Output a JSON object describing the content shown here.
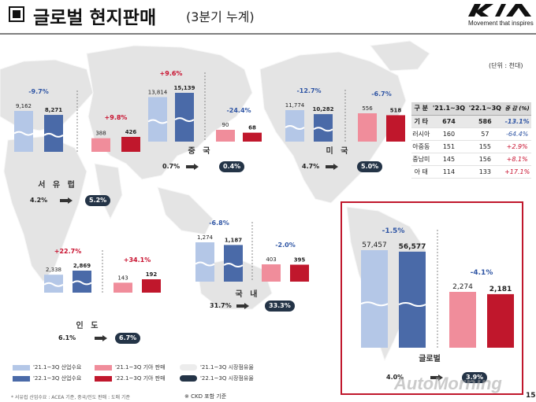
{
  "header": {
    "title": "글로벌 현지판매",
    "subtitle": "(3분기 누계)",
    "brand_tagline": "Movement that inspires"
  },
  "unit_note": "(단위 : 천대)",
  "colors": {
    "industry_2021": "#b4c7e7",
    "industry_2022": "#4a6aa8",
    "kia_2021": "#f08d9b",
    "kia_2022": "#c0172c",
    "growth_pos": "#c8102e",
    "growth_neg": "#2f55a4",
    "map": "#e4e4e4",
    "share_pill": "#243447"
  },
  "chart_data": [
    {
      "type": "bar",
      "region": "서 유 럽",
      "series": [
        {
          "name": "'21.1~3Q 산업수요",
          "value": 9162,
          "label": "9,162"
        },
        {
          "name": "'22.1~3Q 산업수요",
          "value": 8271,
          "label": "8,271"
        },
        {
          "name": "'21.1~3Q 기아 판매",
          "value": 388,
          "label": "388"
        },
        {
          "name": "'22.1~3Q 기아 판매",
          "value": 426,
          "label": "426"
        }
      ],
      "industry_growth": "-9.7%",
      "kia_growth": "+9.8%",
      "share_2021": "4.2%",
      "share_2022": "5.2%"
    },
    {
      "type": "bar",
      "region": "중 국",
      "series": [
        {
          "name": "'21.1~3Q 산업수요",
          "value": 13814,
          "label": "13,814"
        },
        {
          "name": "'22.1~3Q 산업수요",
          "value": 15139,
          "label": "15,139"
        },
        {
          "name": "'21.1~3Q 기아 판매",
          "value": 90,
          "label": "90"
        },
        {
          "name": "'22.1~3Q 기아 판매",
          "value": 68,
          "label": "68"
        }
      ],
      "industry_growth": "+9.6%",
      "kia_growth": "-24.4%",
      "share_2021": "0.7%",
      "share_2022": "0.4%"
    },
    {
      "type": "bar",
      "region": "미 국",
      "series": [
        {
          "name": "'21.1~3Q 산업수요",
          "value": 11774,
          "label": "11,774"
        },
        {
          "name": "'22.1~3Q 산업수요",
          "value": 10282,
          "label": "10,282"
        },
        {
          "name": "'21.1~3Q 기아 판매",
          "value": 556,
          "label": "556"
        },
        {
          "name": "'22.1~3Q 기아 판매",
          "value": 518,
          "label": "518"
        }
      ],
      "industry_growth": "-12.7%",
      "kia_growth": "-6.7%",
      "share_2021": "4.7%",
      "share_2022": "5.0%"
    },
    {
      "type": "bar",
      "region": "인 도",
      "series": [
        {
          "name": "'21.1~3Q 산업수요",
          "value": 2338,
          "label": "2,338"
        },
        {
          "name": "'22.1~3Q 산업수요",
          "value": 2869,
          "label": "2,869"
        },
        {
          "name": "'21.1~3Q 기아 판매",
          "value": 143,
          "label": "143"
        },
        {
          "name": "'22.1~3Q 기아 판매",
          "value": 192,
          "label": "192"
        }
      ],
      "industry_growth": "+22.7%",
      "kia_growth": "+34.1%",
      "share_2021": "6.1%",
      "share_2022": "6.7%"
    },
    {
      "type": "bar",
      "region": "국 내",
      "series": [
        {
          "name": "'21.1~3Q 산업수요",
          "value": 1274,
          "label": "1,274"
        },
        {
          "name": "'22.1~3Q 산업수요",
          "value": 1187,
          "label": "1,187"
        },
        {
          "name": "'21.1~3Q 기아 판매",
          "value": 403,
          "label": "403"
        },
        {
          "name": "'22.1~3Q 기아 판매",
          "value": 395,
          "label": "395"
        }
      ],
      "industry_growth": "-6.8%",
      "kia_growth": "-2.0%",
      "share_2021": "31.7%",
      "share_2022": "33.3%"
    },
    {
      "type": "bar",
      "region": "글로벌",
      "series": [
        {
          "name": "'21.1~3Q 산업수요",
          "value": 57457,
          "label": "57,457"
        },
        {
          "name": "'22.1~3Q 산업수요",
          "value": 56577,
          "label": "56,577"
        },
        {
          "name": "'21.1~3Q 기아 판매",
          "value": 2274,
          "label": "2,274"
        },
        {
          "name": "'22.1~3Q 기아 판매",
          "value": 2181,
          "label": "2,181"
        }
      ],
      "industry_growth": "-1.5%",
      "kia_growth": "-4.1%",
      "share_2021": "4.0%",
      "share_2022": "3.9%"
    }
  ],
  "table": {
    "headers": [
      "구 분",
      "'21.1~3Q",
      "'22.1~3Q",
      "증 감 (%)"
    ],
    "rows": [
      [
        "기 타",
        "674",
        "586",
        "-13.1%"
      ],
      [
        "러시아",
        "160",
        "57",
        "-64.4%"
      ],
      [
        "아중동",
        "151",
        "155",
        "+2.9%"
      ],
      [
        "중남미",
        "145",
        "156",
        "+8.1%"
      ],
      [
        "아 태",
        "114",
        "133",
        "+17.1%"
      ]
    ]
  },
  "legend": {
    "items": [
      "'21.1~3Q 산업수요",
      "'22.1~3Q 산업수요",
      "'21.1~3Q 기아 판매",
      "'22.1~3Q 기아 판매",
      "'21.1~3Q 시장점유율",
      "'22.1~3Q 시장점유율"
    ]
  },
  "footnote": "* 서유럽 산업수요 : ACEA 기준, 중국/인도 판매 : 도매 기준",
  "ckd_note": "※ CKD 포함 기준",
  "watermark": "AutoMorning",
  "page_number": "15"
}
